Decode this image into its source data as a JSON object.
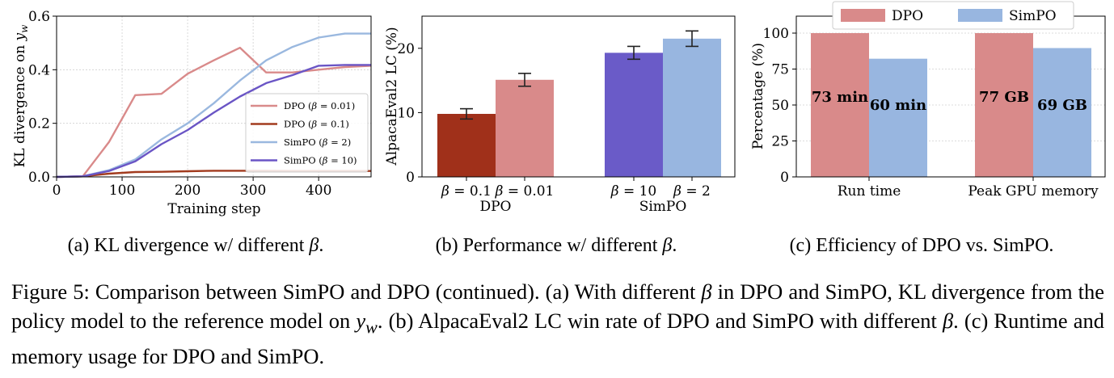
{
  "chart_data": [
    {
      "type": "line",
      "id": "a",
      "xlabel": "Training step",
      "ylabel": "KL divergence on y_w",
      "ylabel_parts": [
        "KL divergence on ",
        "y",
        "w"
      ],
      "xlim": [
        0,
        480
      ],
      "ylim": [
        0,
        0.6
      ],
      "xticks": [
        0,
        100,
        200,
        300,
        400
      ],
      "xtick_labels": [
        "0",
        "100",
        "200",
        "300",
        "400"
      ],
      "yticks": [
        0,
        0.2,
        0.4,
        0.6
      ],
      "ytick_labels": [
        "0.0",
        "0.2",
        "0.4",
        "0.6"
      ],
      "grid": true,
      "legend_position": "center-right",
      "series": [
        {
          "name": "DPO (β = 0.01)",
          "color": "#d98a8a",
          "x": [
            0,
            40,
            80,
            120,
            160,
            200,
            240,
            280,
            320,
            360,
            400,
            440,
            480
          ],
          "y": [
            0,
            0.002,
            0.13,
            0.305,
            0.31,
            0.385,
            0.435,
            0.482,
            0.39,
            0.39,
            0.4,
            0.41,
            0.415
          ]
        },
        {
          "name": "DPO (β = 0.1)",
          "color": "#a23b1e",
          "x": [
            0,
            40,
            80,
            120,
            160,
            200,
            240,
            280,
            320,
            360,
            400,
            440,
            480
          ],
          "y": [
            0,
            0.002,
            0.012,
            0.018,
            0.019,
            0.021,
            0.023,
            0.023,
            0.023,
            0.022,
            0.022,
            0.022,
            0.022
          ]
        },
        {
          "name": "SimPO (β = 2)",
          "color": "#9ab8df",
          "x": [
            0,
            40,
            80,
            120,
            160,
            200,
            240,
            280,
            320,
            360,
            400,
            440,
            480
          ],
          "y": [
            0,
            0.002,
            0.025,
            0.065,
            0.14,
            0.2,
            0.275,
            0.36,
            0.435,
            0.485,
            0.52,
            0.535,
            0.535
          ]
        },
        {
          "name": "SimPO (β = 10)",
          "color": "#6a55c5",
          "x": [
            0,
            40,
            80,
            120,
            160,
            200,
            240,
            280,
            320,
            360,
            400,
            440,
            480
          ],
          "y": [
            0,
            0.002,
            0.022,
            0.058,
            0.122,
            0.175,
            0.24,
            0.3,
            0.35,
            0.38,
            0.415,
            0.418,
            0.418
          ]
        }
      ]
    },
    {
      "type": "bar",
      "id": "b",
      "ylabel": "AlpacaEval2 LC (%)",
      "ylim": [
        0,
        25
      ],
      "yticks": [
        0,
        10,
        20
      ],
      "ytick_labels": [
        "0",
        "10",
        "20"
      ],
      "groups": [
        "DPO",
        "SimPO"
      ],
      "bars": [
        {
          "group": "DPO",
          "label": "β = 0.1",
          "value": 9.8,
          "error": 0.8,
          "color": "#a0301a"
        },
        {
          "group": "DPO",
          "label": "β = 0.01",
          "value": 15.1,
          "error": 1.0,
          "color": "#d98a8a"
        },
        {
          "group": "SimPO",
          "label": "β = 10",
          "value": 19.3,
          "error": 1.0,
          "color": "#6a5bc8"
        },
        {
          "group": "SimPO",
          "label": "β = 2",
          "value": 21.5,
          "error": 1.2,
          "color": "#98b6e0"
        }
      ]
    },
    {
      "type": "bar",
      "id": "c",
      "ylabel": "Percentage (%)",
      "ylim": [
        0,
        100
      ],
      "yticks": [
        0,
        25,
        50,
        75,
        100
      ],
      "ytick_labels": [
        "0",
        "25",
        "50",
        "75",
        "100"
      ],
      "categories": [
        "Run time",
        "Peak GPU memory"
      ],
      "legend_position": "top",
      "series": [
        {
          "name": "DPO",
          "color": "#d98a8a",
          "values": [
            100,
            100
          ],
          "labels": [
            "73 min",
            "77 GB"
          ]
        },
        {
          "name": "SimPO",
          "color": "#98b6e0",
          "values": [
            82.2,
            89.6
          ],
          "labels": [
            "60 min",
            "69 GB"
          ]
        }
      ]
    }
  ],
  "subcaptions": {
    "a": [
      "(a) KL divergence w/ different ",
      "β",
      "."
    ],
    "b": [
      "(b) Performance w/ different ",
      "β",
      "."
    ],
    "c": "(c) Efficiency of DPO vs. SimPO."
  },
  "caption": {
    "p1": "Figure 5: Comparison between SimPO and DPO (continued). (a) With different ",
    "beta1": "β",
    "p2": " in DPO and SimPO, KL divergence from the policy model to the reference model on ",
    "yw": "y",
    "yw_sub": "w",
    "p3": ". (b) AlpacaEval2 LC win rate of DPO and SimPO with different ",
    "beta2": "β",
    "p4": ". (c) Runtime and memory usage for DPO and SimPO."
  }
}
